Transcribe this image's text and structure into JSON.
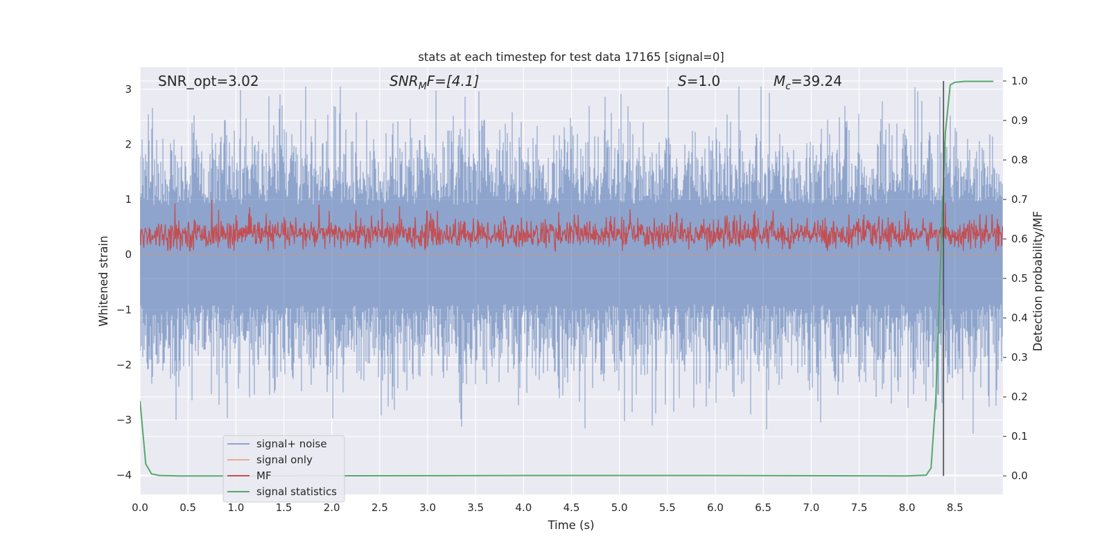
{
  "chart_data": {
    "type": "line",
    "title": "stats at each timestep for test data 17165 [signal=0]",
    "xlabel": "Time (s)",
    "ylabel": "Whitened strain",
    "y2label": "Detection probability/MF",
    "xlim": [
      0.0,
      9.0
    ],
    "ylim": [
      -4.35,
      3.4
    ],
    "y2lim": [
      -0.047,
      1.035
    ],
    "x_ticks": [
      "0.0",
      "0.5",
      "1.0",
      "1.5",
      "2.0",
      "2.5",
      "3.0",
      "3.5",
      "4.0",
      "4.5",
      "5.0",
      "5.5",
      "6.0",
      "6.5",
      "7.0",
      "7.5",
      "8.0",
      "8.5"
    ],
    "y_ticks": [
      "3",
      "2",
      "1",
      "0",
      "−1",
      "−2",
      "−3",
      "−4"
    ],
    "y2_ticks": [
      "1.0",
      "0.9",
      "0.8",
      "0.7",
      "0.6",
      "0.5",
      "0.4",
      "0.3",
      "0.2",
      "0.1",
      "0.0"
    ],
    "grid": true,
    "legend_position": "lower-left",
    "background_color": "#eaeaf2",
    "annotations": {
      "snr_opt": "SNR_opt=3.02",
      "snr_mf_base": "SNR",
      "snr_mf_sub": "M",
      "snr_mf_rest": "F=[4.1]",
      "s_symbol": "S",
      "s_value": "=1.0",
      "mc_symbol": "M",
      "mc_sub": "c",
      "mc_value": "=39.24"
    },
    "series": [
      {
        "name": "signal+ noise",
        "color": "#4c72b0",
        "opacity": 0.5,
        "description": "noisy whitened strain, roughly within ±3 with spikes to −4",
        "amplitude_range": [
          -4.0,
          3.05
        ]
      },
      {
        "name": "signal only",
        "color": "#dd8452",
        "opacity": 0.5,
        "values_constant": 0.0
      },
      {
        "name": "MF",
        "color": "#c44e52",
        "axis": "right",
        "description": "matched filter output, fluctuating between about 0.57 and 0.71",
        "range": [
          0.57,
          0.71
        ]
      },
      {
        "name": "signal statistics",
        "color": "#55a868",
        "axis": "right",
        "x": [
          0.0,
          0.06,
          0.12,
          0.2,
          0.4,
          1.0,
          4.5,
          5.7,
          8.0,
          8.2,
          8.25,
          8.3,
          8.35,
          8.4,
          8.45,
          8.5,
          8.6,
          8.9
        ],
        "values": [
          0.19,
          0.03,
          0.005,
          0.001,
          0.0,
          0.0,
          0.001,
          0.001,
          0.0,
          0.002,
          0.02,
          0.2,
          0.55,
          0.87,
          0.99,
          0.997,
          0.999,
          0.999
        ]
      }
    ],
    "marker_line": {
      "x": 8.38,
      "y2_range": [
        0.0,
        1.0
      ],
      "color": "#555555"
    }
  }
}
